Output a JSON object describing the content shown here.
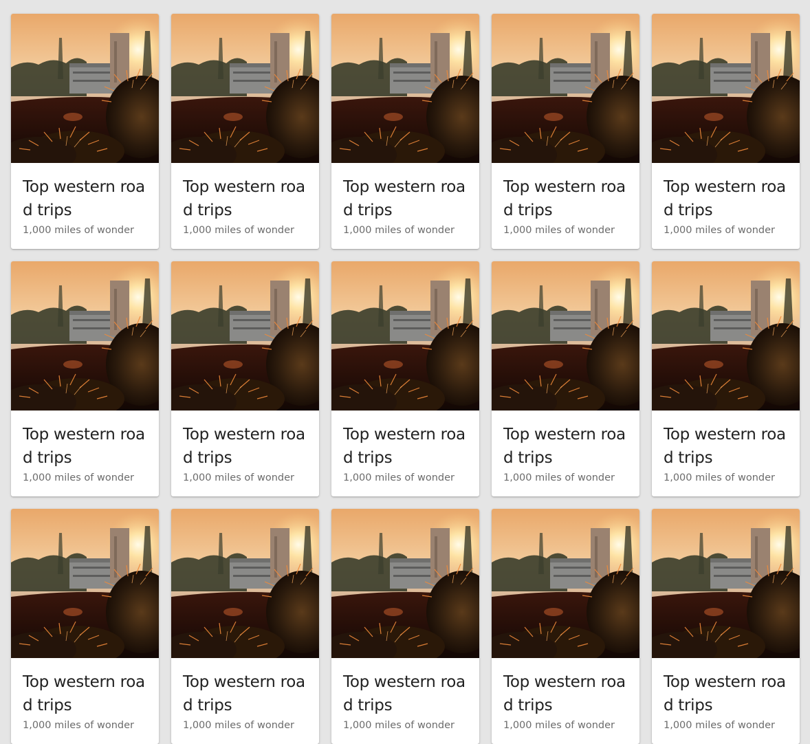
{
  "cards": [
    {
      "title": "Top western road trips",
      "subtitle": "1,000 miles of wonder",
      "image_icon": "cactus-sunset-photo"
    },
    {
      "title": "Top western road trips",
      "subtitle": "1,000 miles of wonder",
      "image_icon": "cactus-sunset-photo"
    },
    {
      "title": "Top western road trips",
      "subtitle": "1,000 miles of wonder",
      "image_icon": "cactus-sunset-photo"
    },
    {
      "title": "Top western road trips",
      "subtitle": "1,000 miles of wonder",
      "image_icon": "cactus-sunset-photo"
    },
    {
      "title": "Top western road trips",
      "subtitle": "1,000 miles of wonder",
      "image_icon": "cactus-sunset-photo"
    },
    {
      "title": "Top western road trips",
      "subtitle": "1,000 miles of wonder",
      "image_icon": "cactus-sunset-photo"
    },
    {
      "title": "Top western road trips",
      "subtitle": "1,000 miles of wonder",
      "image_icon": "cactus-sunset-photo"
    },
    {
      "title": "Top western road trips",
      "subtitle": "1,000 miles of wonder",
      "image_icon": "cactus-sunset-photo"
    },
    {
      "title": "Top western road trips",
      "subtitle": "1,000 miles of wonder",
      "image_icon": "cactus-sunset-photo"
    },
    {
      "title": "Top western road trips",
      "subtitle": "1,000 miles of wonder",
      "image_icon": "cactus-sunset-photo"
    },
    {
      "title": "Top western road trips",
      "subtitle": "1,000 miles of wonder",
      "image_icon": "cactus-sunset-photo"
    },
    {
      "title": "Top western road trips",
      "subtitle": "1,000 miles of wonder",
      "image_icon": "cactus-sunset-photo"
    },
    {
      "title": "Top western road trips",
      "subtitle": "1,000 miles of wonder",
      "image_icon": "cactus-sunset-photo"
    },
    {
      "title": "Top western road trips",
      "subtitle": "1,000 miles of wonder",
      "image_icon": "cactus-sunset-photo"
    },
    {
      "title": "Top western road trips",
      "subtitle": "1,000 miles of wonder",
      "image_icon": "cactus-sunset-photo"
    }
  ],
  "colors": {
    "page_background": "#e5e5e5",
    "card_background": "#ffffff",
    "title_text": "#212121",
    "subtitle_text": "#6b6b6b"
  }
}
